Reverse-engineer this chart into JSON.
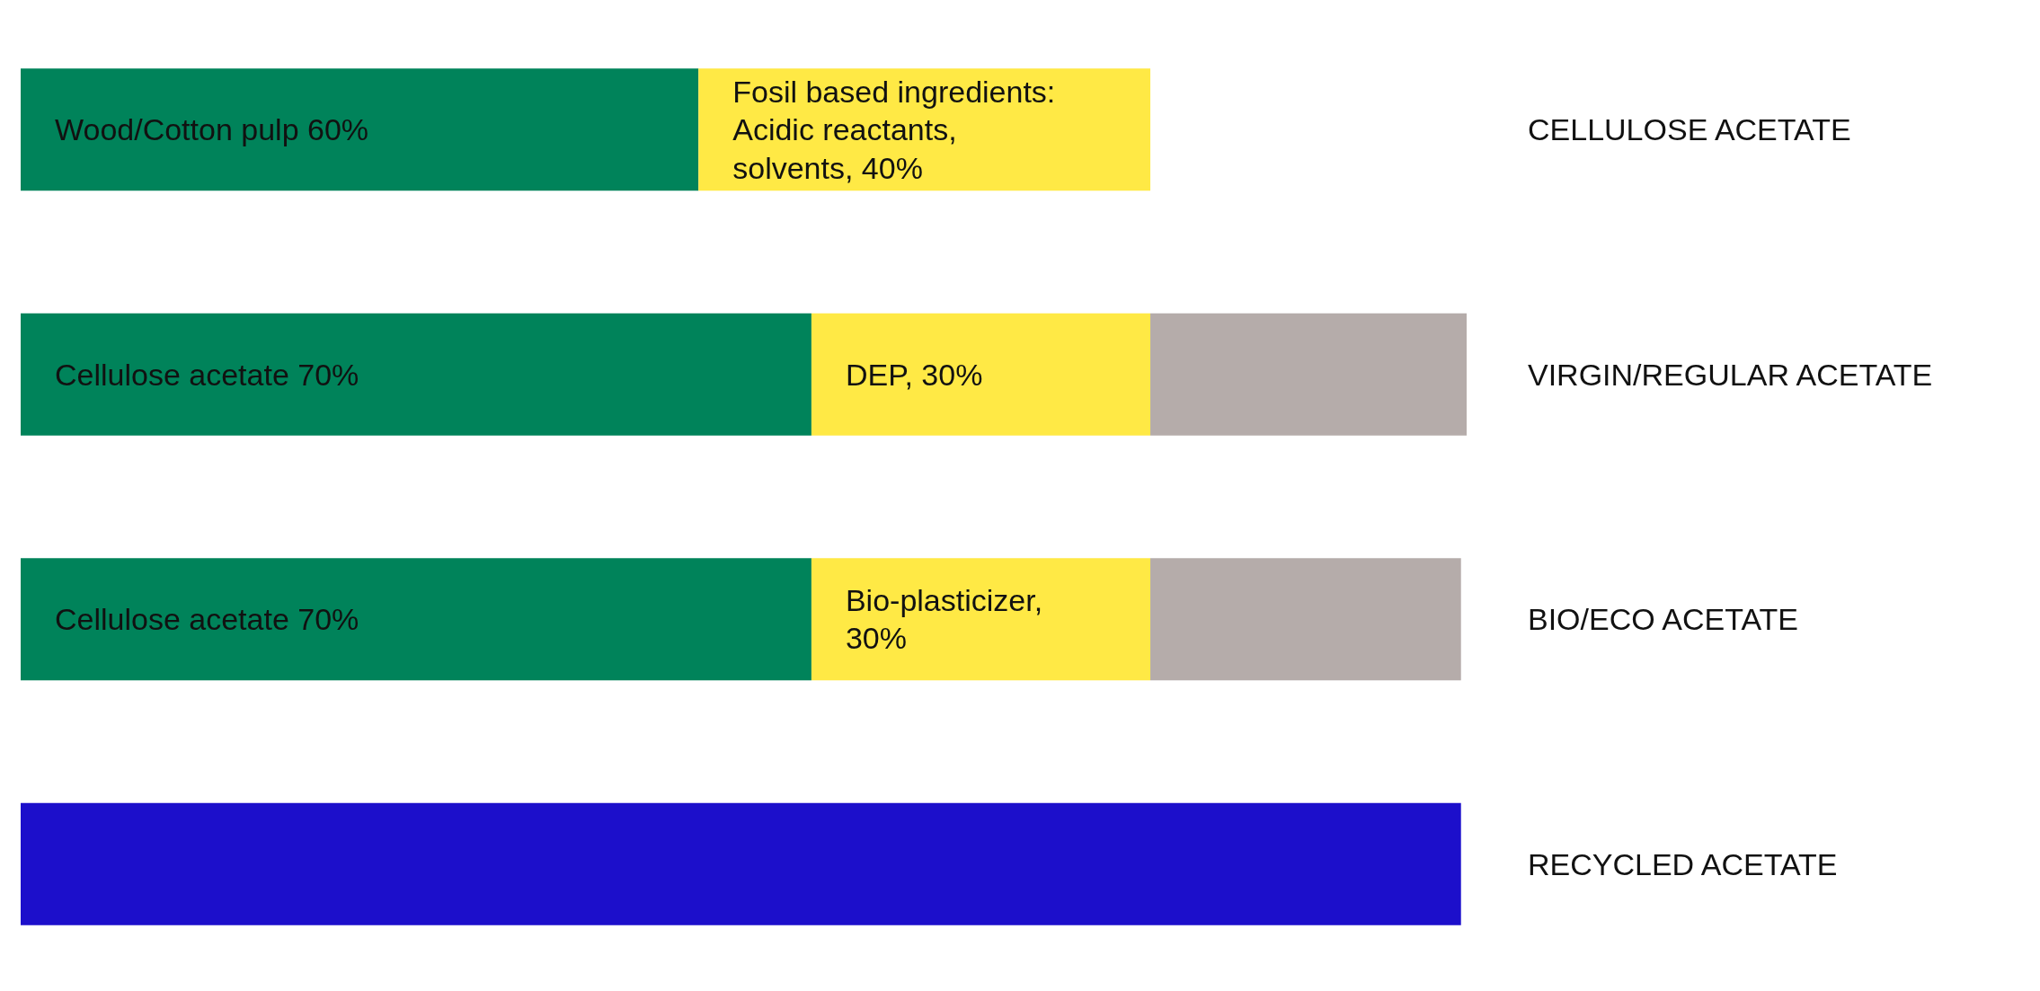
{
  "chart_data": {
    "type": "bar",
    "orientation": "horizontal",
    "stacked": true,
    "xlim": [
      0,
      128
    ],
    "tick_labels": "y",
    "categories": [
      "CELLULOSE ACETATE",
      "VIRGIN/REGULAR ACETATE",
      "BIO/ECO ACETATE",
      "RECYCLED ACETATE"
    ],
    "series": [
      {
        "color": "#00835a",
        "values": [
          60,
          70,
          70,
          null
        ],
        "value_labels": [
          "Wood/Cotton pulp 60%",
          "Cellulose acetate 70%",
          "Cellulose acetate 70%",
          null
        ]
      },
      {
        "color": "#ffe945",
        "values": [
          40,
          30,
          30,
          null
        ],
        "value_labels": [
          "Fosil based ingredients: Acidic reactants, solvents, 40%",
          "DEP, 30%",
          "Bio-plasticizer, 30%",
          null
        ]
      },
      {
        "color": "#b5acaa",
        "values": [
          null,
          28,
          27.5,
          null
        ]
      },
      {
        "color": "#1c0fcb",
        "values": [
          null,
          null,
          null,
          127.5
        ]
      }
    ],
    "grid": false,
    "legend": false
  }
}
